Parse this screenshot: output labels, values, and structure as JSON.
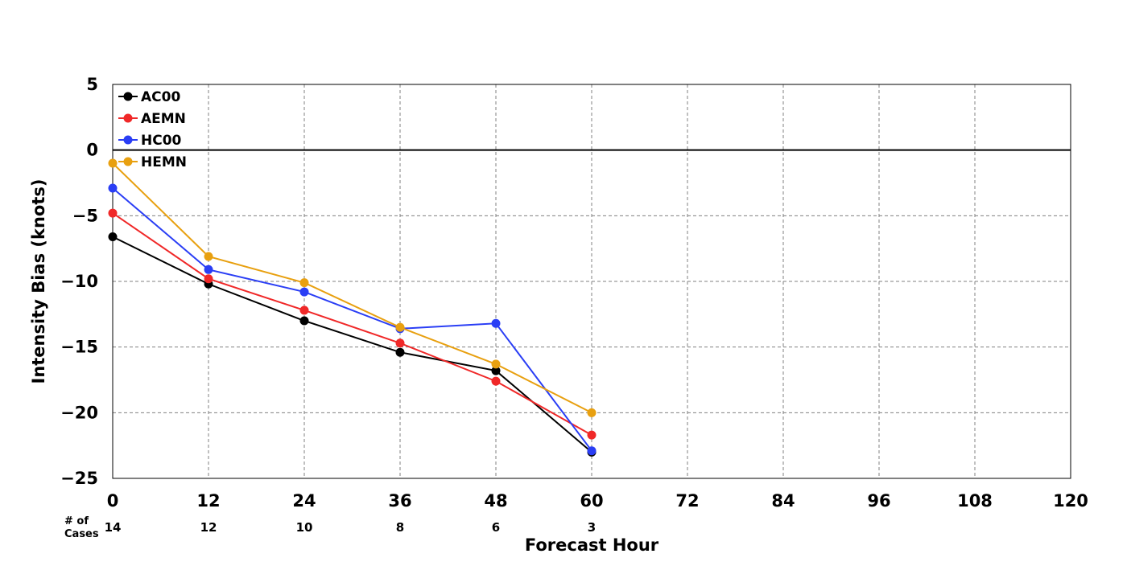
{
  "chart_data": {
    "type": "line",
    "title": "",
    "xlabel": "Forecast Hour",
    "ylabel": "Intensity Bias (knots)",
    "xlim": [
      0,
      120
    ],
    "ylim": [
      -25,
      5
    ],
    "x_ticks": [
      0,
      12,
      24,
      36,
      48,
      60,
      72,
      84,
      96,
      108,
      120
    ],
    "y_ticks": [
      5,
      0,
      -5,
      -10,
      -15,
      -20,
      -25
    ],
    "x_tick_labels": [
      "0",
      "12",
      "24",
      "36",
      "48",
      "60",
      "72",
      "84",
      "96",
      "108",
      "120"
    ],
    "y_tick_labels": [
      "5",
      "0",
      "−5",
      "−10",
      "−15",
      "−20",
      "−25"
    ],
    "grid": true,
    "zero_line": true,
    "legend_position": "top-left",
    "cases": {
      "title_line1": "# of",
      "title_line2": "Cases",
      "x": [
        0,
        12,
        24,
        36,
        48,
        60
      ],
      "labels": [
        "14",
        "12",
        "10",
        "8",
        "6",
        "3"
      ]
    },
    "series": [
      {
        "name": "AC00",
        "color": "#000000",
        "x": [
          0,
          12,
          24,
          36,
          48,
          60
        ],
        "y": [
          -6.6,
          -10.2,
          -13.0,
          -15.4,
          -16.8,
          -23.0
        ]
      },
      {
        "name": "AEMN",
        "color": "#f02828",
        "x": [
          0,
          12,
          24,
          36,
          48,
          60
        ],
        "y": [
          -4.8,
          -9.8,
          -12.2,
          -14.7,
          -17.6,
          -21.7
        ]
      },
      {
        "name": "HC00",
        "color": "#2a3ef5",
        "x": [
          0,
          12,
          24,
          36,
          48,
          60
        ],
        "y": [
          -2.9,
          -9.1,
          -10.8,
          -13.6,
          -13.2,
          -22.9
        ]
      },
      {
        "name": "HEMN",
        "color": "#e8a010",
        "x": [
          0,
          12,
          24,
          36,
          48,
          60
        ],
        "y": [
          -1.0,
          -8.1,
          -10.1,
          -13.5,
          -16.3,
          -20.0
        ]
      }
    ]
  }
}
